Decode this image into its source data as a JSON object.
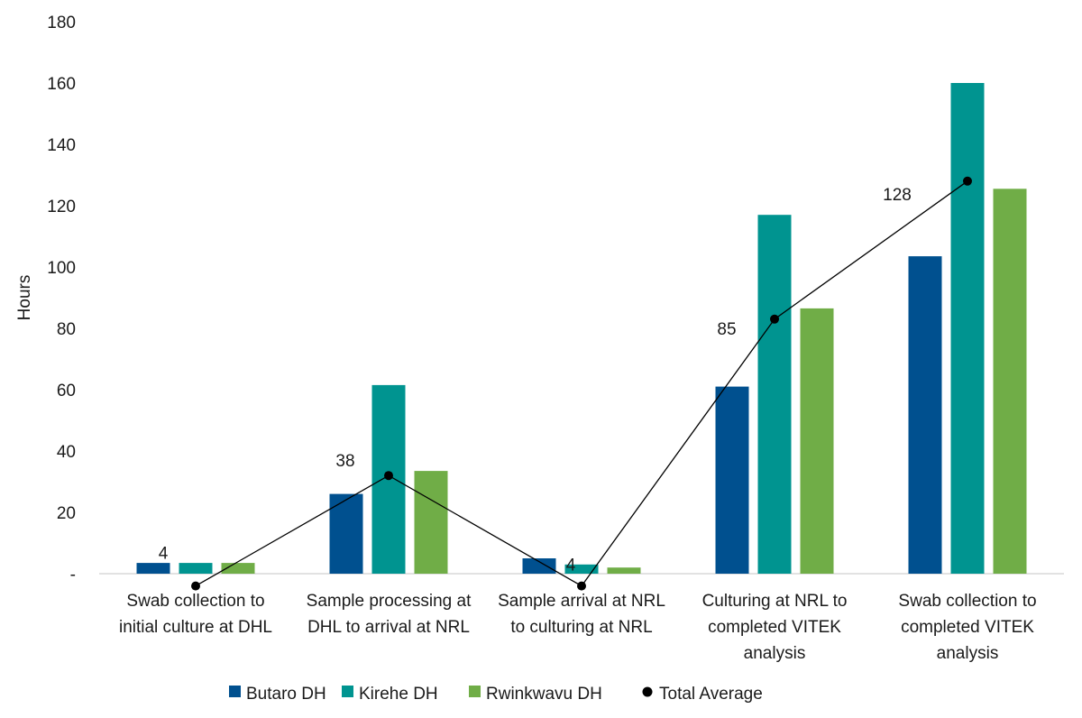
{
  "chart_data": {
    "type": "bar",
    "ylabel": "Hours",
    "ylim": [
      0,
      180
    ],
    "y_ticks": [
      {
        "value": 0,
        "label": "-"
      },
      {
        "value": 20,
        "label": "20"
      },
      {
        "value": 40,
        "label": "40"
      },
      {
        "value": 60,
        "label": "60"
      },
      {
        "value": 80,
        "label": "80"
      },
      {
        "value": 100,
        "label": "100"
      },
      {
        "value": 120,
        "label": "120"
      },
      {
        "value": 140,
        "label": "140"
      },
      {
        "value": 160,
        "label": "160"
      },
      {
        "value": 180,
        "label": "180"
      }
    ],
    "categories": [
      [
        "Swab collection to",
        "initial culture at DHL"
      ],
      [
        "Sample processing at",
        "DHL to arrival at NRL"
      ],
      [
        "Sample arrival at NRL",
        "to culturing at NRL"
      ],
      [
        "Culturing at NRL to",
        "completed VITEK",
        "analysis"
      ],
      [
        "Swab collection to",
        "completed VITEK",
        "analysis"
      ]
    ],
    "series": [
      {
        "name": "Butaro DH",
        "color": "#00508f",
        "values": [
          3.5,
          26,
          5,
          61,
          103.5
        ]
      },
      {
        "name": "Kirehe DH",
        "color": "#009490",
        "values": [
          3.5,
          61.5,
          3,
          117,
          160
        ]
      },
      {
        "name": "Rwinkwavu DH",
        "color": "#70ad47",
        "values": [
          3.5,
          33.5,
          2,
          86.5,
          125.5
        ]
      }
    ],
    "line": {
      "name": "Total Average",
      "color": "#000000",
      "values": [
        -4,
        32,
        -4,
        83,
        128
      ],
      "labels": [
        "4",
        "38",
        "4",
        "85",
        "128"
      ]
    },
    "legend_position": "bottom",
    "grid": false
  }
}
